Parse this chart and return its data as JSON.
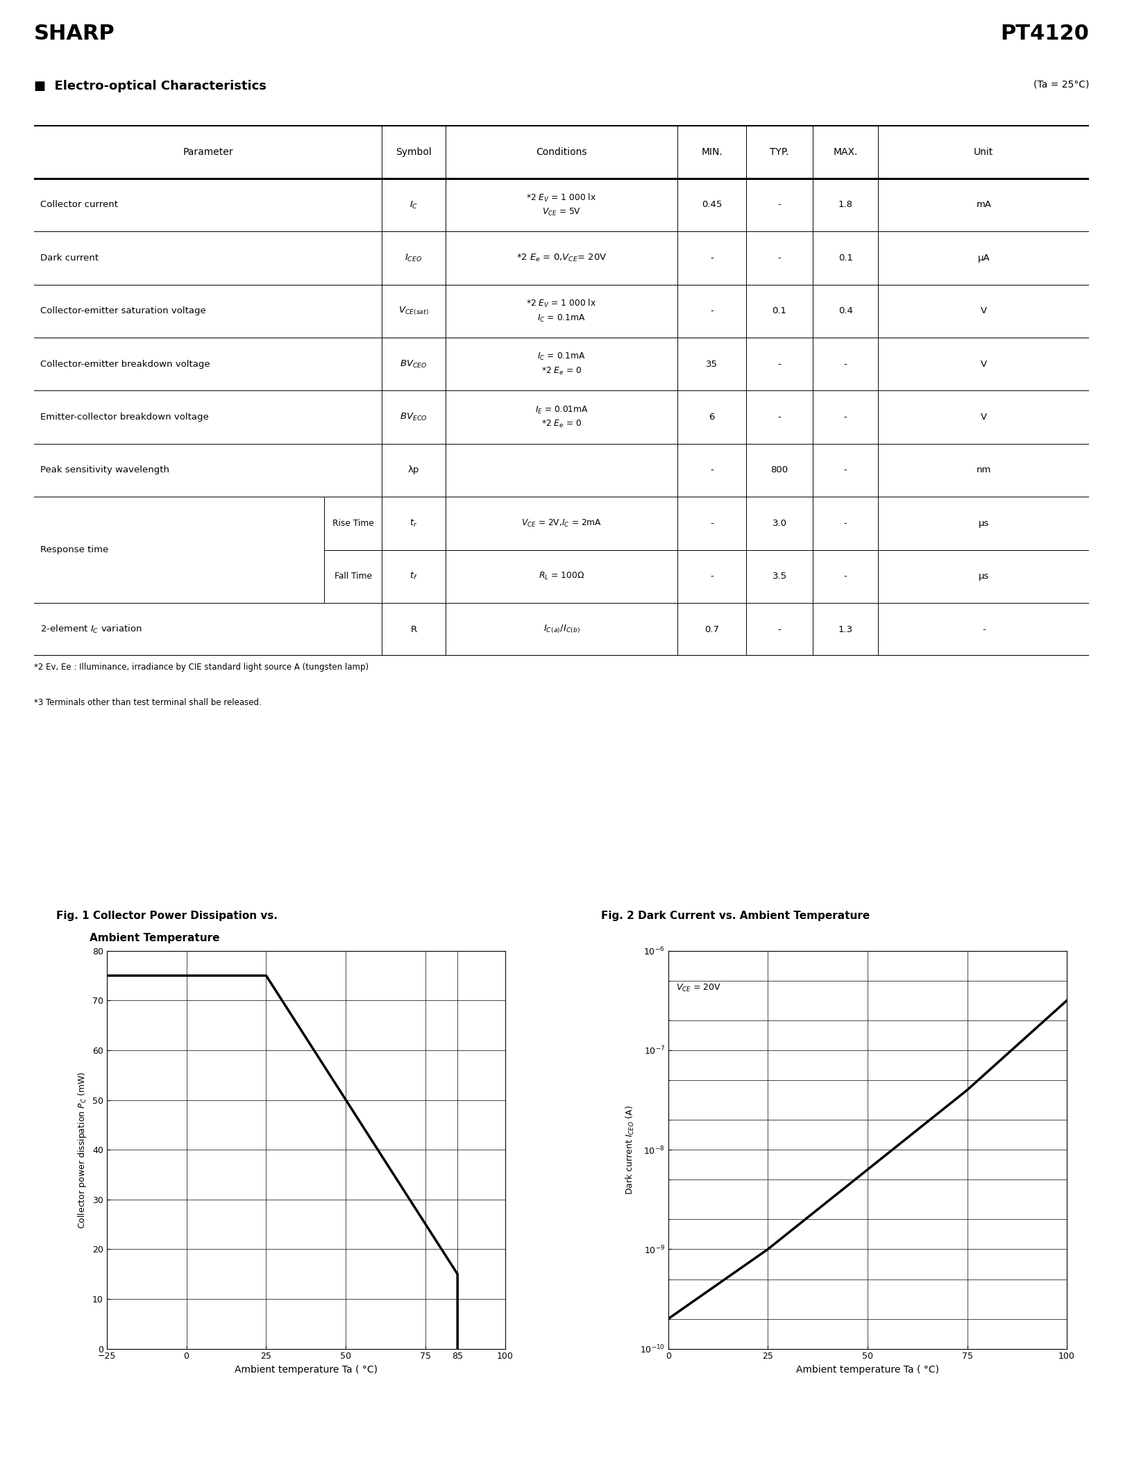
{
  "title_company": "SHARP",
  "title_product": "PT4120",
  "section_title": "■  Electro-optical Characteristics",
  "ta_note": "(Ta = 25°C)",
  "footnote1": "*2 Ev, Ee : Illuminance, irradiance by CIE standard light source A (tungsten lamp)",
  "footnote2": "*3 Terminals other than test terminal shall be released.",
  "fig1_title_line1": "Fig. 1 Collector Power Dissipation vs.",
  "fig1_title_line2": "Ambient Temperature",
  "fig1_xlabel": "Ambient temperature Ta ( °C)",
  "fig1_xlim": [
    -25,
    100
  ],
  "fig1_ylim": [
    0,
    80
  ],
  "fig1_xticks": [
    -25,
    0,
    25,
    50,
    75,
    85,
    100
  ],
  "fig1_yticks": [
    0,
    10,
    20,
    30,
    40,
    50,
    60,
    70,
    80
  ],
  "fig1_x": [
    -25,
    25,
    75,
    85,
    85
  ],
  "fig1_y": [
    75,
    75,
    25,
    15,
    0
  ],
  "fig2_title": "Fig. 2 Dark Current vs. Ambient Temperature",
  "fig2_xlabel": "Ambient temperature Ta ( °C)",
  "fig2_xlim": [
    0,
    100
  ],
  "fig2_xticks": [
    0,
    25,
    50,
    75,
    100
  ],
  "fig2_annotation": "VCE = 20V",
  "fig2_x": [
    0,
    25,
    50,
    75,
    100
  ],
  "fig2_y_log": [
    -9.7,
    -9.0,
    -8.2,
    -7.4,
    -6.5
  ]
}
